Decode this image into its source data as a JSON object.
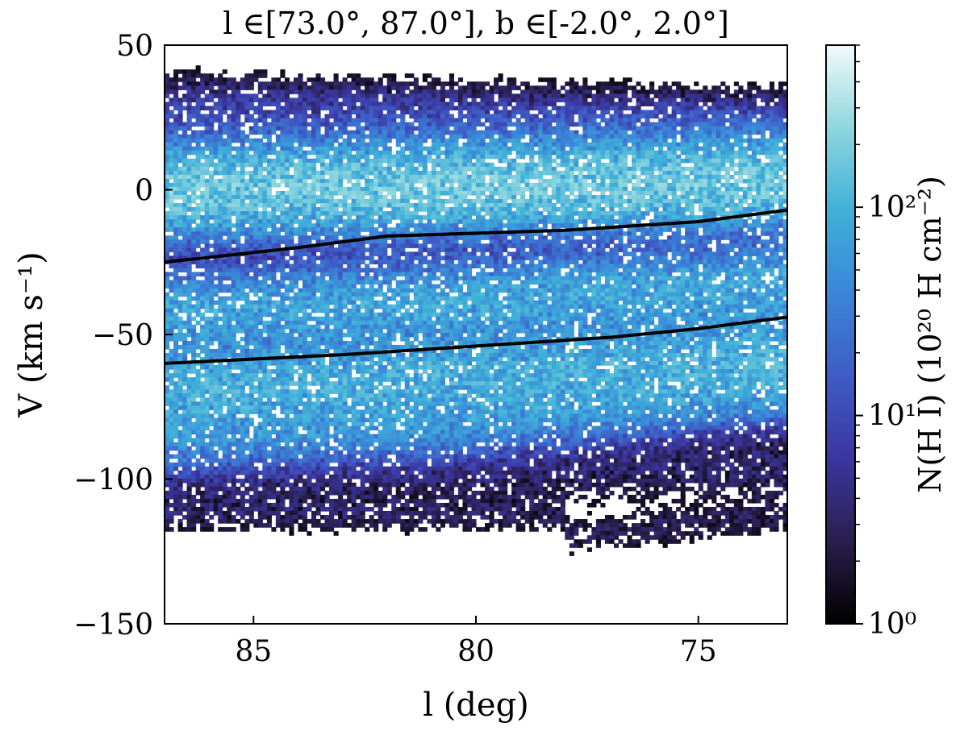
{
  "chart_data": {
    "type": "heatmap",
    "title": "l ∈[73.0°, 87.0°], b ∈[-2.0°, 2.0°]",
    "xlabel": "l (deg)",
    "ylabel": "V (km s⁻¹)",
    "xlim": [
      87.0,
      73.0
    ],
    "ylim": [
      -150,
      50
    ],
    "x_ticks": [
      85,
      80,
      75
    ],
    "x_tick_labels": [
      "85",
      "80",
      "75"
    ],
    "y_ticks": [
      50,
      0,
      -50,
      -100,
      -150
    ],
    "y_tick_labels": [
      "50",
      "0",
      "−50",
      "−100",
      "−150"
    ],
    "grid": false,
    "colorbar": {
      "label": "N(H I) (10²⁰ H cm⁻²)",
      "scale": "log",
      "range": [
        1,
        600
      ],
      "ticks": [
        1,
        10,
        100
      ],
      "tick_labels": [
        "10⁰",
        "10¹",
        "10²"
      ],
      "colormap": [
        "#000000",
        "#2a1f4e",
        "#3b36a0",
        "#3f5cc6",
        "#3a86d8",
        "#3fb0d8",
        "#8fd6de",
        "#f2fafa"
      ]
    },
    "bands": [
      {
        "center": [
          [
            87,
            0
          ],
          [
            73,
            3
          ]
        ],
        "halfwidth": 13,
        "peak": 200
      },
      {
        "center": [
          [
            87,
            -42
          ],
          [
            80,
            -38
          ],
          [
            73,
            -32
          ]
        ],
        "halfwidth": 11,
        "peak": 90
      },
      {
        "center": [
          [
            87,
            -70
          ],
          [
            80,
            -65
          ],
          [
            73,
            -58
          ]
        ],
        "halfwidth": 14,
        "peak": 110
      },
      {
        "center": [
          [
            87,
            -88
          ],
          [
            80,
            -82
          ],
          [
            73,
            -70
          ]
        ],
        "halfwidth": 8,
        "peak": 40
      },
      {
        "center": [
          [
            87,
            28
          ],
          [
            73,
            22
          ]
        ],
        "halfwidth": 10,
        "peak": 8
      },
      {
        "center": [
          [
            87,
            -100
          ],
          [
            73,
            -95
          ]
        ],
        "halfwidth": 10,
        "peak": 4
      },
      {
        "center": [
          [
            78,
            -120
          ],
          [
            73,
            -112
          ]
        ],
        "halfwidth": 6,
        "peak": 3
      }
    ],
    "series": [
      {
        "points": [
          [
            87,
            -25
          ],
          [
            84,
            -20
          ],
          [
            82,
            -16
          ],
          [
            78,
            -14
          ],
          [
            75,
            -11
          ],
          [
            73,
            -7
          ]
        ]
      },
      {
        "points": [
          [
            87,
            -60
          ],
          [
            83,
            -57
          ],
          [
            80,
            -54
          ],
          [
            77,
            -51
          ],
          [
            75,
            -48
          ],
          [
            73,
            -44
          ]
        ]
      }
    ]
  }
}
